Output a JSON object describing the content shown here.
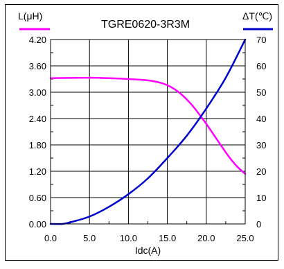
{
  "chart_data": {
    "type": "line",
    "title": "TGRE0620-3R3M",
    "xlabel": "Idc(A)",
    "ylabel_left": "L(μH)",
    "ylabel_right": "ΔT(℃)",
    "xlim": [
      0,
      25
    ],
    "ylim_left": [
      0,
      4.2
    ],
    "ylim_right": [
      0,
      70
    ],
    "x_ticks": [
      "0.0",
      "5.0",
      "10.0",
      "15.0",
      "20.0",
      "25.0"
    ],
    "y_left_ticks": [
      "0.00",
      "0.60",
      "1.20",
      "1.80",
      "2.40",
      "3.00",
      "3.60",
      "4.20"
    ],
    "y_right_ticks": [
      "0",
      "10",
      "20",
      "30",
      "40",
      "50",
      "60",
      "70"
    ],
    "grid": true,
    "series": [
      {
        "name": "L(μH)",
        "axis": "left",
        "color": "#ff00ff",
        "x": [
          0,
          2.5,
          5,
          7.5,
          10,
          12.5,
          14,
          15,
          16,
          17,
          18,
          19,
          20,
          21,
          22,
          23,
          24,
          25
        ],
        "y": [
          3.32,
          3.325,
          3.33,
          3.32,
          3.3,
          3.27,
          3.22,
          3.16,
          3.06,
          2.92,
          2.74,
          2.52,
          2.28,
          2.02,
          1.76,
          1.51,
          1.3,
          1.14
        ]
      },
      {
        "name": "ΔT(℃)",
        "axis": "right",
        "color": "#0000cc",
        "x": [
          0,
          1.5,
          2.5,
          5,
          7.5,
          10,
          12.5,
          15,
          17.5,
          20,
          22.5,
          25
        ],
        "y": [
          0,
          0,
          0.6,
          2.8,
          6.5,
          11.3,
          17.3,
          25,
          33.5,
          43.8,
          55.5,
          70
        ]
      }
    ]
  }
}
